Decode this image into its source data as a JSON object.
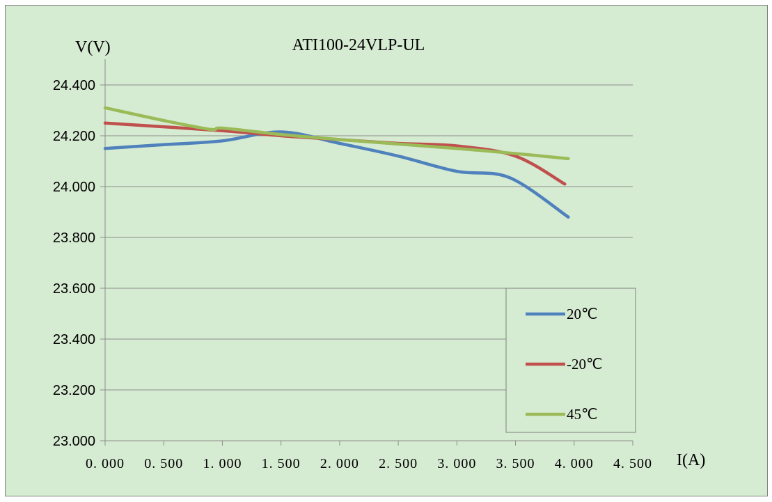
{
  "chart_data": {
    "type": "line",
    "title": "ATI100-24VLP-UL",
    "ylabel": "V(V)",
    "xlabel": "I(A)",
    "xlim": [
      0,
      4.5
    ],
    "ylim": [
      23.0,
      24.4
    ],
    "x_ticks": [
      "0.000",
      "0.500",
      "1.000",
      "1.500",
      "2.000",
      "2.500",
      "3.000",
      "3.500",
      "4.000",
      "4.500"
    ],
    "y_ticks": [
      "23.000",
      "23.200",
      "23.400",
      "23.600",
      "23.800",
      "24.000",
      "24.200",
      "24.400"
    ],
    "grid": "horizontal",
    "legend_position": "bottom-right",
    "series": [
      {
        "name": "20℃",
        "color": "#4f81bd",
        "x": [
          0,
          0.5,
          1.0,
          1.5,
          2.0,
          2.5,
          3.0,
          3.45,
          3.95
        ],
        "y": [
          24.15,
          24.165,
          24.18,
          24.215,
          24.17,
          24.12,
          24.06,
          24.035,
          23.88
        ]
      },
      {
        "name": "-20℃",
        "color": "#c0504d",
        "x": [
          0,
          1.0,
          1.5,
          2.0,
          2.5,
          3.0,
          3.5,
          3.92
        ],
        "y": [
          24.25,
          24.22,
          24.2,
          24.185,
          24.17,
          24.16,
          24.12,
          24.01
        ]
      },
      {
        "name": "45℃",
        "color": "#9bbb59",
        "x": [
          0,
          0.5,
          0.9,
          1.0,
          1.5,
          2.0,
          3.0,
          3.5,
          3.95
        ],
        "y": [
          24.31,
          24.26,
          24.225,
          24.23,
          24.205,
          24.185,
          24.15,
          24.13,
          24.11
        ]
      }
    ]
  }
}
